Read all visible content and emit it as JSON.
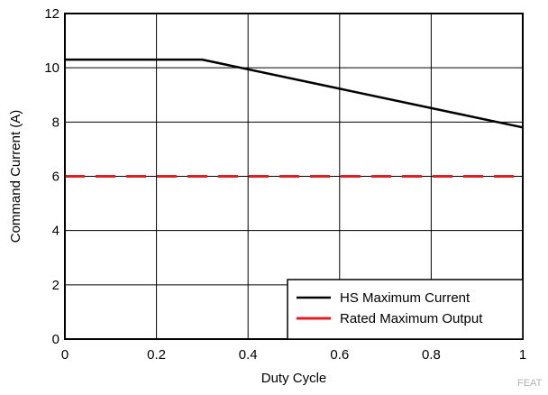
{
  "chart_data": {
    "type": "line",
    "xlabel": "Duty Cycle",
    "ylabel": "Command Current (A)",
    "xlim": [
      0,
      1
    ],
    "ylim": [
      0,
      12
    ],
    "x_ticks": [
      "0",
      "0.2",
      "0.4",
      "0.6",
      "0.8",
      "1"
    ],
    "x_tick_values": [
      0,
      0.2,
      0.4,
      0.6,
      0.8,
      1
    ],
    "y_ticks": [
      "0",
      "2",
      "4",
      "6",
      "8",
      "10",
      "12"
    ],
    "y_tick_values": [
      0,
      2,
      4,
      6,
      8,
      10,
      12
    ],
    "grid": true,
    "legend_position": "bottom-right",
    "series": [
      {
        "name": "HS Maximum Current",
        "color": "#000000",
        "style": "solid",
        "x": [
          0,
          0.3,
          1
        ],
        "y": [
          10.3,
          10.3,
          7.8
        ]
      },
      {
        "name": "Rated Maximum Output",
        "color": "#e02020",
        "style": "dashed",
        "x": [
          0,
          1
        ],
        "y": [
          6,
          6
        ]
      }
    ]
  },
  "watermark": "FEAT"
}
